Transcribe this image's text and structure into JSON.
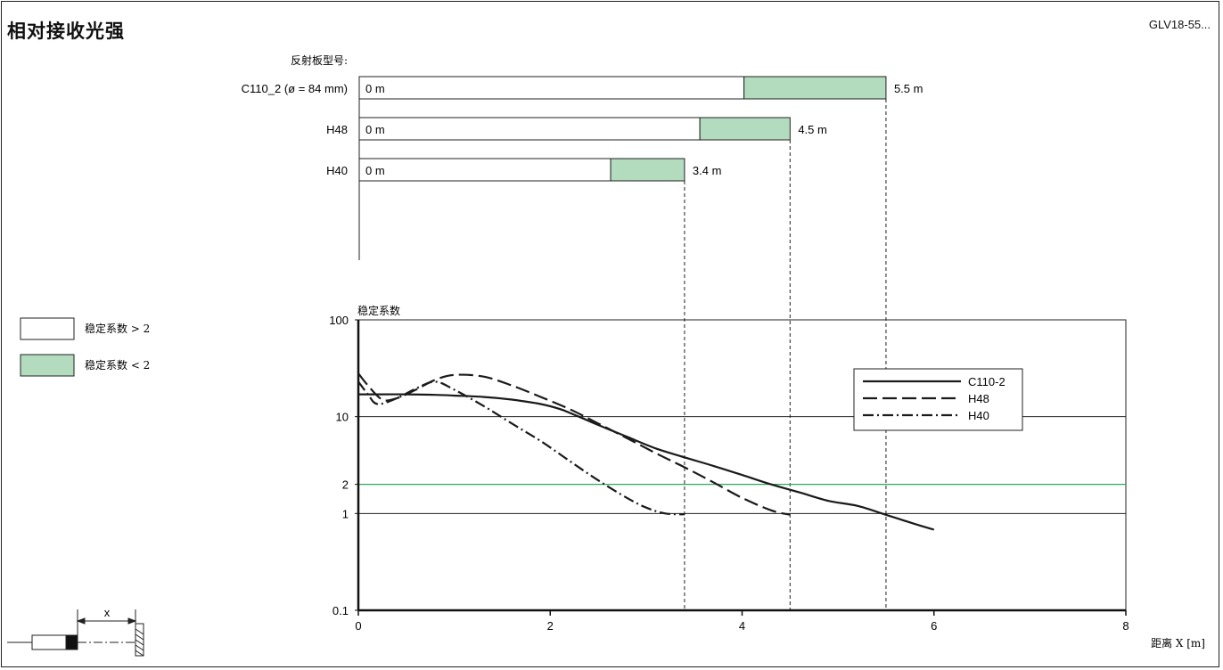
{
  "header": {
    "title": "相对接收光强",
    "code": "GLV18-55..."
  },
  "reflectors": {
    "heading": "反射板型号:",
    "items": [
      {
        "name": "C110_2 (ø = 84 mm)",
        "start_label": "0 m",
        "end_label": "5.5 m",
        "stable_end_m": 4.02,
        "max_range_m": 5.5
      },
      {
        "name": "H48",
        "start_label": "0 m",
        "end_label": "4.5 m",
        "stable_end_m": 3.56,
        "max_range_m": 4.5
      },
      {
        "name": "H40",
        "start_label": "0 m",
        "end_label": "3.4 m",
        "stable_end_m": 2.63,
        "max_range_m": 3.4
      }
    ]
  },
  "legend_left": {
    "items": [
      {
        "label": "稳定系数 > 2",
        "color": "#ffffff"
      },
      {
        "label": "稳定系数 < 2",
        "color": "#b3dcbf"
      }
    ]
  },
  "colors": {
    "green_zone": "#b3dcbf",
    "threshold_line": "#2ea85a",
    "line": "#1a1a1a"
  },
  "schematic": {
    "label": "x"
  },
  "chart_data": {
    "type": "line",
    "ylabel": "稳定系数",
    "xlabel": "距离 X [m]",
    "xlim": [
      0,
      8
    ],
    "ylim": [
      0.1,
      100
    ],
    "yscale": "log",
    "xticks": [
      0,
      2,
      4,
      6,
      8
    ],
    "yticks": [
      0.1,
      1,
      2,
      10,
      100
    ],
    "ytick_labels": [
      "0.1",
      "1",
      "2",
      "10",
      "100"
    ],
    "reference_lines": [
      1,
      2,
      10
    ],
    "legend_position": "top-right",
    "series": [
      {
        "name": "C110-2",
        "style": "solid",
        "x": [
          0,
          0.2,
          0.5,
          0.8,
          1.0,
          1.3,
          1.6,
          1.9,
          2.1,
          2.3,
          2.5,
          2.8,
          3.1,
          3.4,
          3.7,
          4.0,
          4.3,
          4.6,
          4.9,
          5.2,
          5.5,
          5.8,
          6.0
        ],
        "y": [
          17,
          17,
          17,
          16.8,
          16.5,
          16,
          15,
          13.5,
          12,
          10,
          8.2,
          6.2,
          4.7,
          3.8,
          3.1,
          2.5,
          2.0,
          1.65,
          1.35,
          1.2,
          0.97,
          0.78,
          0.68
        ]
      },
      {
        "name": "H48",
        "style": "dashed",
        "x": [
          0,
          0.1,
          0.25,
          0.4,
          0.6,
          0.8,
          1.0,
          1.3,
          1.6,
          1.9,
          2.2,
          2.5,
          2.8,
          3.1,
          3.4,
          3.7,
          4.0,
          4.3,
          4.5
        ],
        "y": [
          28,
          21,
          15,
          15.5,
          19,
          24,
          27,
          26,
          21,
          16,
          12,
          8.5,
          6,
          4.2,
          3,
          2.1,
          1.45,
          1.08,
          0.97
        ]
      },
      {
        "name": "H40",
        "style": "dash-dot",
        "x": [
          0,
          0.1,
          0.2,
          0.4,
          0.6,
          0.8,
          1.0,
          1.3,
          1.6,
          1.9,
          2.2,
          2.5,
          2.8,
          3.0,
          3.2,
          3.4
        ],
        "y": [
          23,
          17,
          13.5,
          15.5,
          19.5,
          23,
          19,
          13,
          8.5,
          5.6,
          3.5,
          2.2,
          1.45,
          1.15,
          1.0,
          0.98
        ]
      }
    ]
  }
}
